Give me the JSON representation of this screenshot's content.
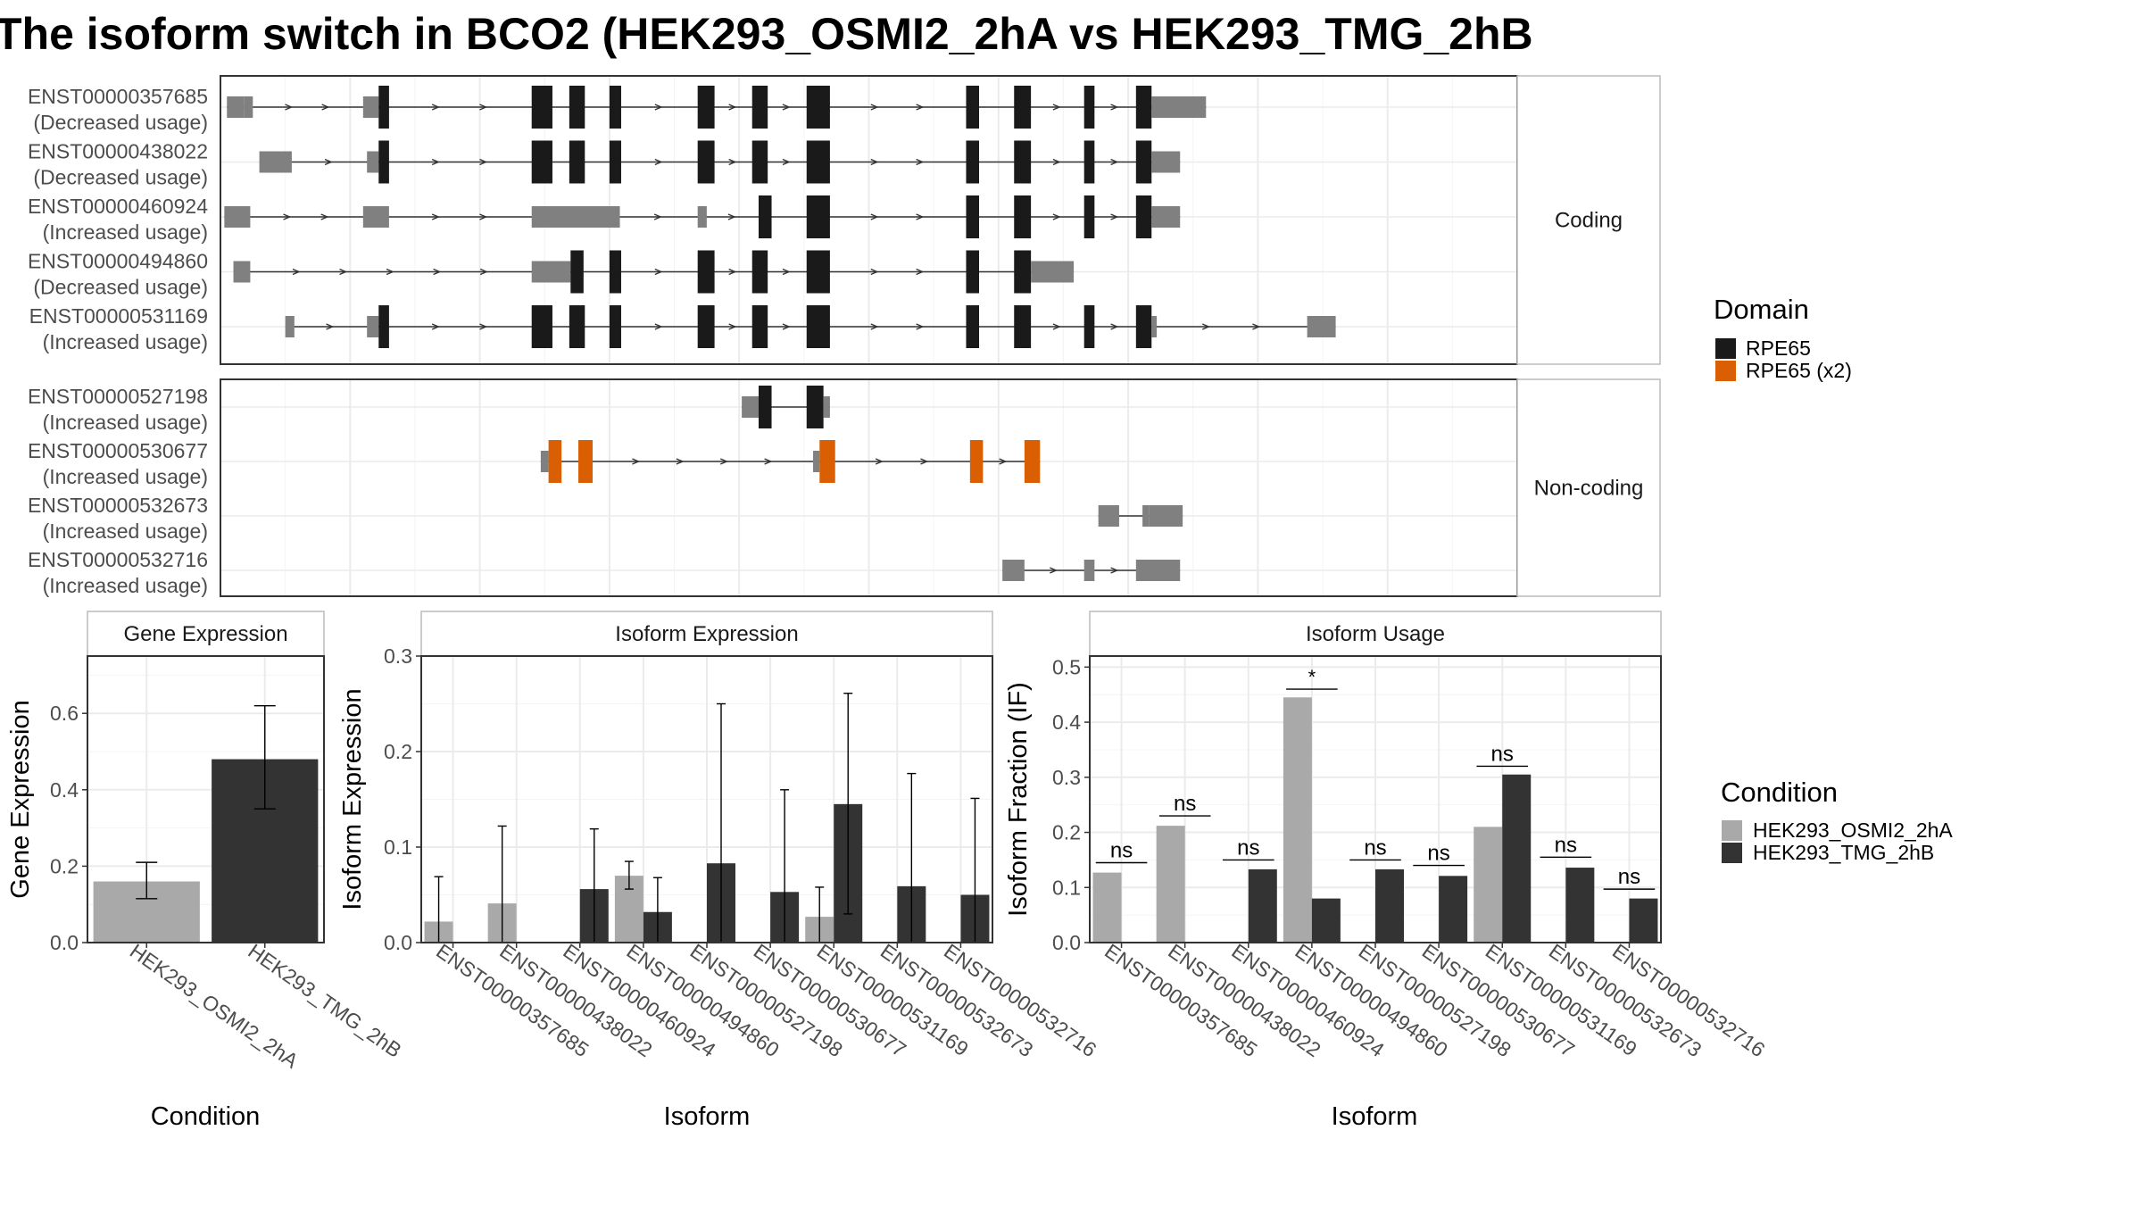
{
  "title": "The isoform switch in BCO2 (HEK293_OSMI2_2hA vs HEK293_TMG_2hB",
  "colors": {
    "domain_rpe65": "#1a1a1a",
    "domain_rpe65_x2": "#d95f02",
    "no_domain": "#808080",
    "condition_a": "#a9a9a9",
    "condition_b": "#333333",
    "panel_border": "#333333",
    "strip_border": "#bbbbbb",
    "grid": "#ebebeb"
  },
  "structure": {
    "x_range": [
      0,
      1000
    ],
    "groups": [
      {
        "label": "Coding",
        "transcripts": [
          {
            "id": "ENST00000357685",
            "usage": "(Decreased usage)",
            "exons": [
              [
                5,
                18,
                0
              ],
              [
                18,
                25,
                0
              ],
              [
                110,
                122,
                0
              ],
              [
                122,
                130,
                1
              ],
              [
                240,
                256,
                1
              ],
              [
                269,
                281,
                1
              ],
              [
                300,
                309,
                1
              ],
              [
                368,
                381,
                1
              ],
              [
                410,
                422,
                1
              ],
              [
                452,
                470,
                1
              ],
              [
                575,
                585,
                1
              ],
              [
                612,
                625,
                1
              ],
              [
                666,
                674,
                1
              ],
              [
                706,
                718,
                1
              ],
              [
                718,
                760,
                0
              ]
            ]
          },
          {
            "id": "ENST00000438022",
            "usage": "(Decreased usage)",
            "exons": [
              [
                30,
                55,
                0
              ],
              [
                113,
                122,
                0
              ],
              [
                122,
                130,
                1
              ],
              [
                240,
                256,
                1
              ],
              [
                269,
                281,
                1
              ],
              [
                300,
                309,
                1
              ],
              [
                368,
                381,
                1
              ],
              [
                410,
                422,
                1
              ],
              [
                452,
                470,
                1
              ],
              [
                575,
                585,
                1
              ],
              [
                612,
                625,
                1
              ],
              [
                666,
                674,
                1
              ],
              [
                706,
                718,
                1
              ],
              [
                718,
                740,
                0
              ]
            ]
          },
          {
            "id": "ENST00000460924",
            "usage": "(Increased usage)",
            "exons": [
              [
                3,
                23,
                0
              ],
              [
                110,
                130,
                0
              ],
              [
                240,
                308,
                0
              ],
              [
                368,
                375,
                0
              ],
              [
                415,
                425,
                1
              ],
              [
                452,
                470,
                1
              ],
              [
                575,
                585,
                1
              ],
              [
                612,
                625,
                1
              ],
              [
                666,
                674,
                1
              ],
              [
                706,
                718,
                1
              ],
              [
                718,
                740,
                0
              ]
            ]
          },
          {
            "id": "ENST00000494860",
            "usage": "(Decreased usage)",
            "exons": [
              [
                10,
                23,
                0
              ],
              [
                240,
                270,
                0
              ],
              [
                270,
                280,
                1
              ],
              [
                300,
                309,
                1
              ],
              [
                368,
                381,
                1
              ],
              [
                410,
                422,
                1
              ],
              [
                452,
                470,
                1
              ],
              [
                575,
                585,
                1
              ],
              [
                612,
                625,
                1
              ],
              [
                625,
                658,
                0
              ]
            ]
          },
          {
            "id": "ENST00000531169",
            "usage": "(Increased usage)",
            "exons": [
              [
                50,
                57,
                0
              ],
              [
                113,
                122,
                0
              ],
              [
                122,
                130,
                1
              ],
              [
                240,
                256,
                1
              ],
              [
                269,
                281,
                1
              ],
              [
                300,
                309,
                1
              ],
              [
                368,
                381,
                1
              ],
              [
                410,
                422,
                1
              ],
              [
                452,
                470,
                1
              ],
              [
                575,
                585,
                1
              ],
              [
                612,
                625,
                1
              ],
              [
                666,
                674,
                1
              ],
              [
                706,
                718,
                1
              ],
              [
                718,
                722,
                0
              ],
              [
                838,
                860,
                0
              ]
            ]
          }
        ]
      },
      {
        "label": "Non-coding",
        "transcripts": [
          {
            "id": "ENST00000527198",
            "usage": "(Increased usage)",
            "exons": [
              [
                402,
                415,
                0
              ],
              [
                415,
                425,
                1
              ],
              [
                452,
                465,
                1
              ],
              [
                465,
                470,
                0
              ]
            ]
          },
          {
            "id": "ENST00000530677",
            "usage": "(Increased usage)",
            "exons": [
              [
                247,
                253,
                0
              ],
              [
                253,
                263,
                2
              ],
              [
                276,
                287,
                2
              ],
              [
                457,
                462,
                0
              ],
              [
                462,
                474,
                2
              ],
              [
                578,
                588,
                2
              ],
              [
                620,
                632,
                2
              ]
            ]
          },
          {
            "id": "ENST00000532673",
            "usage": "(Increased usage)",
            "exons": [
              [
                677,
                693,
                0
              ],
              [
                711,
                716,
                0
              ],
              [
                716,
                742,
                0
              ]
            ]
          },
          {
            "id": "ENST00000532716",
            "usage": "(Increased usage)",
            "exons": [
              [
                603,
                620,
                0
              ],
              [
                666,
                674,
                0
              ],
              [
                706,
                740,
                0
              ]
            ]
          }
        ]
      }
    ],
    "legend": {
      "title": "Domain",
      "items": [
        "RPE65",
        "RPE65 (x2)"
      ]
    }
  },
  "chart_data": [
    {
      "type": "bar",
      "title": "Gene Expression",
      "xlabel": "Condition",
      "ylabel": "Gene Expression",
      "ylim": [
        0,
        0.75
      ],
      "yticks": [
        0.0,
        0.2,
        0.4,
        0.6
      ],
      "ytick_labels": [
        "0.0",
        "0.2",
        "0.4",
        "0.6"
      ],
      "categories": [
        "HEK293_OSMI2_2hA",
        "HEK293_TMG_2hB"
      ],
      "values": [
        0.16,
        0.48
      ],
      "err_low": [
        0.115,
        0.35
      ],
      "err_high": [
        0.21,
        0.62
      ]
    },
    {
      "type": "bar",
      "title": "Isoform Expression",
      "xlabel": "Isoform",
      "ylabel": "Isoform Expression",
      "ylim": [
        0,
        0.3
      ],
      "yticks": [
        0.0,
        0.1,
        0.2,
        0.3
      ],
      "ytick_labels": [
        "0.0",
        "0.1",
        "0.2",
        "0.3"
      ],
      "categories": [
        "ENST00000357685",
        "ENST00000438022",
        "ENST00000460924",
        "ENST00000494860",
        "ENST00000527198",
        "ENST00000530677",
        "ENST00000531169",
        "ENST00000532673",
        "ENST00000532716"
      ],
      "series": [
        {
          "name": "HEK293_OSMI2_2hA",
          "values": [
            0.022,
            0.041,
            0.0,
            0.07,
            0.0,
            0.0,
            0.027,
            0.0,
            0.0
          ],
          "err_low": [
            0.0,
            0.0,
            null,
            0.056,
            null,
            null,
            0.0,
            null,
            null
          ],
          "err_high": [
            0.069,
            0.122,
            null,
            0.085,
            null,
            null,
            0.058,
            null,
            null
          ]
        },
        {
          "name": "HEK293_TMG_2hB",
          "values": [
            0.0,
            0.0,
            0.056,
            0.032,
            0.083,
            0.053,
            0.145,
            0.059,
            0.05
          ],
          "err_low": [
            null,
            null,
            0.0,
            0.0,
            0.0,
            0.0,
            0.03,
            0.0,
            0.0
          ],
          "err_high": [
            null,
            null,
            0.119,
            0.068,
            0.25,
            0.16,
            0.261,
            0.177,
            0.151
          ]
        }
      ]
    },
    {
      "type": "bar",
      "title": "Isoform Usage",
      "xlabel": "Isoform",
      "ylabel": "Isoform Fraction (IF)",
      "ylim": [
        0,
        0.52
      ],
      "yticks": [
        0.0,
        0.1,
        0.2,
        0.3,
        0.4,
        0.5
      ],
      "ytick_labels": [
        "0.0",
        "0.1",
        "0.2",
        "0.3",
        "0.4",
        "0.5"
      ],
      "categories": [
        "ENST00000357685",
        "ENST00000438022",
        "ENST00000460924",
        "ENST00000494860",
        "ENST00000527198",
        "ENST00000530677",
        "ENST00000531169",
        "ENST00000532673",
        "ENST00000532716"
      ],
      "series": [
        {
          "name": "HEK293_OSMI2_2hA",
          "values": [
            0.127,
            0.212,
            0.0,
            0.445,
            0.0,
            0.0,
            0.21,
            0.0,
            0.0
          ]
        },
        {
          "name": "HEK293_TMG_2hB",
          "values": [
            0.0,
            0.0,
            0.133,
            0.08,
            0.133,
            0.121,
            0.305,
            0.136,
            0.08
          ]
        }
      ],
      "significance": [
        "ns",
        "ns",
        "ns",
        "*",
        "ns",
        "ns",
        "ns",
        "ns",
        "ns"
      ],
      "sig_y": [
        0.145,
        0.23,
        0.15,
        0.46,
        0.15,
        0.14,
        0.32,
        0.155,
        0.097
      ]
    }
  ],
  "condition_legend": {
    "title": "Condition",
    "items": [
      "HEK293_OSMI2_2hA",
      "HEK293_TMG_2hB"
    ]
  }
}
